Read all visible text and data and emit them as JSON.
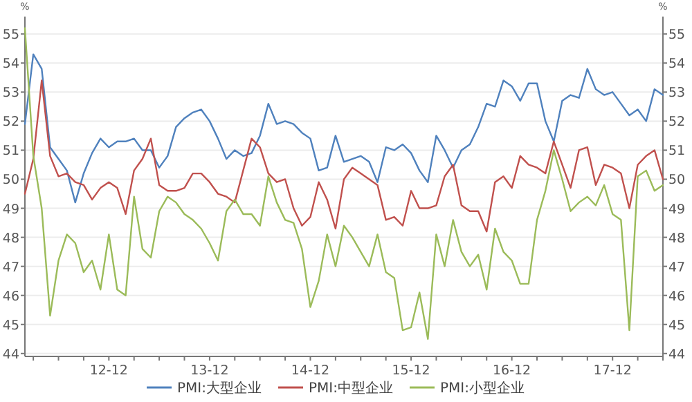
{
  "chart_data": {
    "type": "line",
    "ylabel": "%",
    "y2label": "%",
    "x": [
      "2012-02",
      "2012-03",
      "2012-04",
      "2012-05",
      "2012-06",
      "2012-07",
      "2012-08",
      "2012-09",
      "2012-10",
      "2012-11",
      "2012-12",
      "2013-01",
      "2013-02",
      "2013-03",
      "2013-04",
      "2013-05",
      "2013-06",
      "2013-07",
      "2013-08",
      "2013-09",
      "2013-10",
      "2013-11",
      "2013-12",
      "2014-01",
      "2014-02",
      "2014-03",
      "2014-04",
      "2014-05",
      "2014-06",
      "2014-07",
      "2014-08",
      "2014-09",
      "2014-10",
      "2014-11",
      "2014-12",
      "2015-01",
      "2015-02",
      "2015-03",
      "2015-04",
      "2015-05",
      "2015-06",
      "2015-07",
      "2015-08",
      "2015-09",
      "2015-10",
      "2015-11",
      "2015-12",
      "2016-01",
      "2016-02",
      "2016-03",
      "2016-04",
      "2016-05",
      "2016-06",
      "2016-07",
      "2016-08",
      "2016-09",
      "2016-10",
      "2016-11",
      "2016-12",
      "2017-01",
      "2017-02",
      "2017-03",
      "2017-04",
      "2017-05",
      "2017-06",
      "2017-07",
      "2017-08",
      "2017-09",
      "2017-10",
      "2017-11",
      "2017-12",
      "2018-01",
      "2018-02",
      "2018-03",
      "2018-04",
      "2018-05",
      "2018-06"
    ],
    "xlim": [
      "2012-02",
      "2018-06"
    ],
    "xticks": [
      {
        "value": "2012-03",
        "label": null
      },
      {
        "value": "2012-06",
        "label": null
      },
      {
        "value": "2012-09",
        "label": null
      },
      {
        "value": "2012-12",
        "label": "12-12"
      },
      {
        "value": "2013-03",
        "label": null
      },
      {
        "value": "2013-06",
        "label": null
      },
      {
        "value": "2013-09",
        "label": null
      },
      {
        "value": "2013-12",
        "label": "13-12"
      },
      {
        "value": "2014-03",
        "label": null
      },
      {
        "value": "2014-06",
        "label": null
      },
      {
        "value": "2014-09",
        "label": null
      },
      {
        "value": "2014-12",
        "label": "14-12"
      },
      {
        "value": "2015-03",
        "label": null
      },
      {
        "value": "2015-06",
        "label": null
      },
      {
        "value": "2015-09",
        "label": null
      },
      {
        "value": "2015-12",
        "label": "15-12"
      },
      {
        "value": "2016-03",
        "label": null
      },
      {
        "value": "2016-06",
        "label": null
      },
      {
        "value": "2016-09",
        "label": null
      },
      {
        "value": "2016-12",
        "label": "16-12"
      },
      {
        "value": "2017-03",
        "label": null
      },
      {
        "value": "2017-06",
        "label": null
      },
      {
        "value": "2017-09",
        "label": null
      },
      {
        "value": "2017-12",
        "label": "17-12"
      },
      {
        "value": "2018-03",
        "label": null
      },
      {
        "value": "2018-06",
        "label": null
      }
    ],
    "ylim": [
      43.9,
      55.6
    ],
    "yticks": [
      44,
      45,
      46,
      47,
      48,
      49,
      50,
      51,
      52,
      53,
      54,
      55
    ],
    "y2lim": [
      43.9,
      55.6
    ],
    "y2ticks": [
      44,
      45,
      46,
      47,
      48,
      49,
      50,
      51,
      52,
      53,
      54,
      55
    ],
    "grid": "y",
    "legend": "bottom",
    "series": [
      {
        "name": "PMI:大型企业",
        "color": "#4f81bd",
        "values": [
          51.9,
          54.3,
          53.8,
          51.1,
          50.7,
          50.3,
          49.2,
          50.2,
          50.9,
          51.4,
          51.1,
          51.3,
          51.3,
          51.4,
          51.0,
          51.0,
          50.4,
          50.8,
          51.8,
          52.1,
          52.3,
          52.4,
          52.0,
          51.4,
          50.7,
          51.0,
          50.8,
          50.9,
          51.5,
          52.6,
          51.9,
          52.0,
          51.9,
          51.6,
          51.4,
          50.3,
          50.4,
          51.5,
          50.6,
          50.7,
          50.8,
          50.6,
          49.9,
          51.1,
          51.0,
          51.2,
          50.9,
          50.3,
          49.9,
          51.5,
          51.0,
          50.4,
          51.0,
          51.2,
          51.8,
          52.6,
          52.5,
          53.4,
          53.2,
          52.7,
          53.3,
          53.3,
          52.0,
          51.3,
          52.7,
          52.9,
          52.8,
          53.8,
          53.1,
          52.9,
          53.0,
          52.6,
          52.2,
          52.4,
          52.0,
          53.1,
          52.9
        ]
      },
      {
        "name": "PMI:中型企业",
        "color": "#c0504d",
        "values": [
          49.5,
          50.7,
          53.4,
          50.8,
          50.1,
          50.2,
          49.9,
          49.8,
          49.3,
          49.7,
          49.9,
          49.7,
          48.8,
          50.3,
          50.7,
          51.4,
          49.8,
          49.6,
          49.6,
          49.7,
          50.2,
          50.2,
          49.9,
          49.5,
          49.4,
          49.2,
          50.3,
          51.4,
          51.1,
          50.2,
          49.9,
          50.0,
          49.0,
          48.4,
          48.7,
          49.9,
          49.3,
          48.3,
          50.0,
          50.4,
          50.2,
          50.0,
          49.8,
          48.6,
          48.7,
          48.4,
          49.6,
          49.0,
          49.0,
          49.1,
          50.1,
          50.5,
          49.1,
          48.9,
          48.9,
          48.2,
          49.9,
          50.1,
          49.7,
          50.8,
          50.5,
          50.4,
          50.2,
          51.3,
          50.5,
          49.7,
          51.0,
          51.1,
          49.8,
          50.5,
          50.4,
          50.2,
          49.0,
          50.5,
          50.8,
          51.0,
          50.0
        ]
      },
      {
        "name": "PMI:小型企业",
        "color": "#9bbb59",
        "values": [
          55.2,
          50.8,
          49.0,
          45.3,
          47.2,
          48.1,
          47.8,
          46.8,
          47.2,
          46.2,
          48.1,
          46.2,
          46.0,
          49.4,
          47.6,
          47.3,
          48.9,
          49.4,
          49.2,
          48.8,
          48.6,
          48.3,
          47.8,
          47.2,
          48.9,
          49.3,
          48.8,
          48.8,
          48.4,
          50.1,
          49.2,
          48.6,
          48.5,
          47.6,
          45.6,
          46.5,
          48.1,
          47.0,
          48.4,
          48.0,
          47.5,
          47.0,
          48.1,
          46.8,
          46.6,
          44.8,
          44.9,
          46.1,
          44.5,
          48.1,
          47.0,
          48.6,
          47.5,
          47.0,
          47.4,
          46.2,
          48.3,
          47.5,
          47.2,
          46.4,
          46.4,
          48.6,
          49.6,
          51.0,
          50.0,
          48.9,
          49.2,
          49.4,
          49.1,
          49.8,
          48.8,
          48.6,
          44.8,
          50.1,
          50.3,
          49.6,
          49.8
        ]
      }
    ]
  }
}
